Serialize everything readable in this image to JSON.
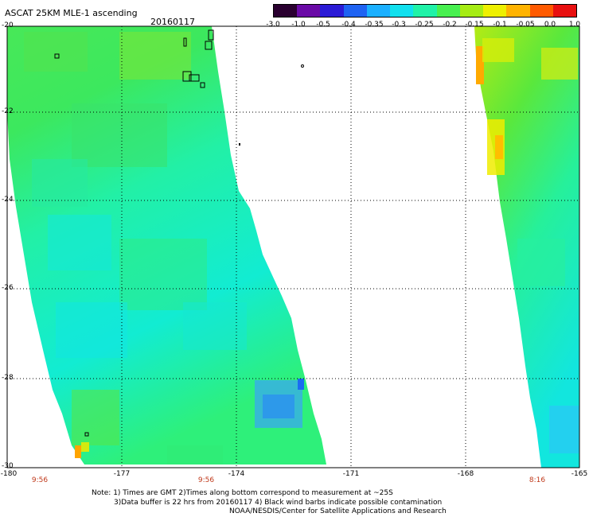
{
  "title": "ASCAT 25KM MLE-1 ascending",
  "date": "20160117",
  "colorbar": {
    "labels": [
      "-3.0",
      "-1.0",
      "-0.5",
      "-0.4",
      "-0.35",
      "-0.3",
      "-0.25",
      "-0.2",
      "-0.15",
      "-0.1",
      "-0.05",
      "0.0",
      "1.0"
    ],
    "colors": [
      "#2a0030",
      "#6a0aa6",
      "#2b1bd6",
      "#1f63f2",
      "#1bb0ff",
      "#11e0ee",
      "#20f2a8",
      "#48f050",
      "#a6ec14",
      "#eef000",
      "#ffb300",
      "#ff5a00",
      "#e81010"
    ]
  },
  "lat_labels": [
    "-20",
    "-22",
    "-24",
    "-26",
    "-28",
    "-30"
  ],
  "lon_labels": [
    "-180",
    "-177",
    "-174",
    "-171",
    "-168",
    "-165"
  ],
  "time_labels": [
    "9:56",
    "9:56",
    "8:16"
  ],
  "notes": [
    "Note: 1) Times are GMT 2)Times along bottom correspond to measurement at ~25S",
    "3)Data buffer is 22 hrs from 20160117 4) Black wind barbs indicate possible contamination",
    "NOAA/NESDIS/Center for Satellite Applications and Research"
  ]
}
